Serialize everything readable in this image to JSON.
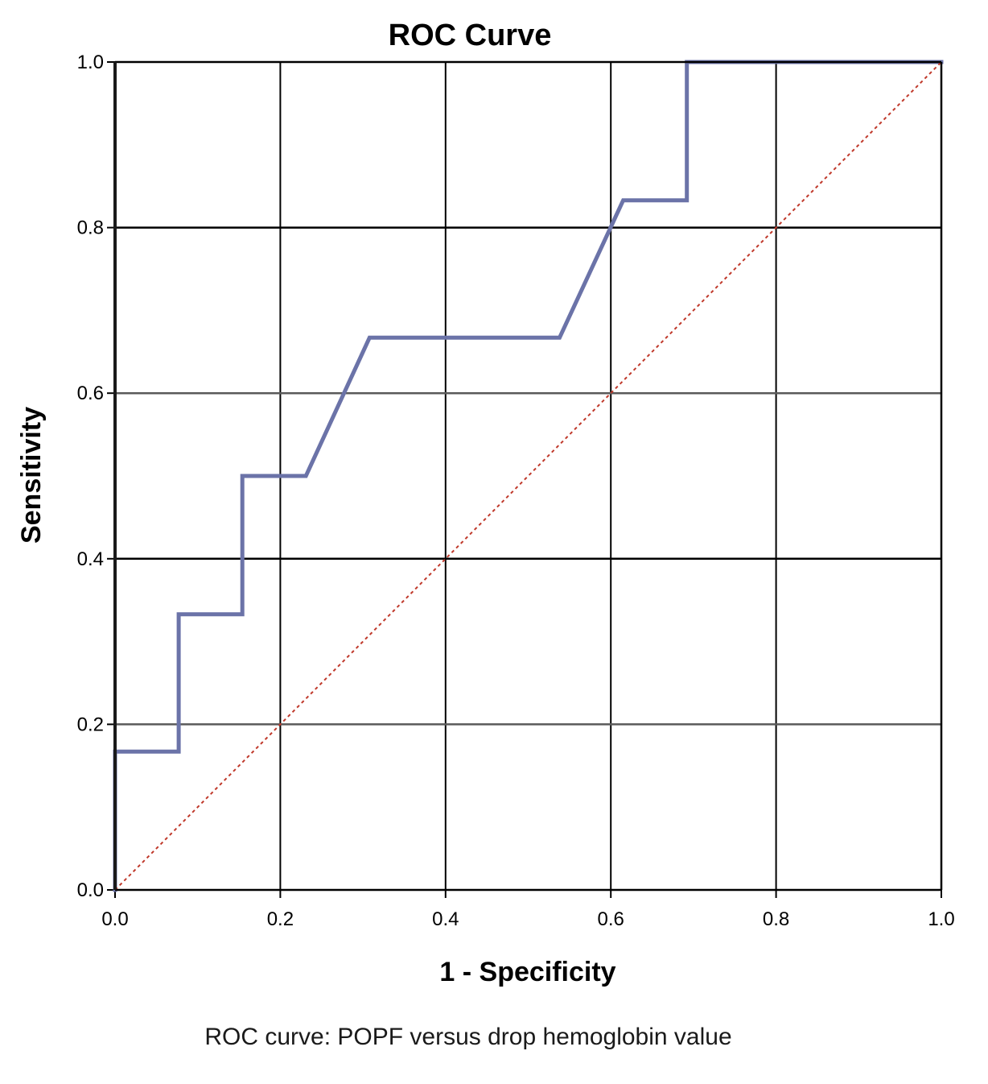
{
  "chart_data": {
    "type": "line",
    "title": "ROC Curve",
    "xlabel": "1 - Specificity",
    "ylabel": "Sensitivity",
    "xlim": [
      0.0,
      1.0
    ],
    "ylim": [
      0.0,
      1.0
    ],
    "x_ticks": [
      "0.0",
      "0.2",
      "0.4",
      "0.6",
      "0.8",
      "1.0"
    ],
    "y_ticks": [
      "0.0",
      "0.2",
      "0.4",
      "0.6",
      "0.8",
      "1.0"
    ],
    "grid": true,
    "series": [
      {
        "role": "curve",
        "style": "solid",
        "color": "#6b73a8",
        "x": [
          0.0,
          0.0,
          0.077,
          0.077,
          0.154,
          0.154,
          0.231,
          0.308,
          0.538,
          0.615,
          0.692,
          0.692,
          1.0
        ],
        "y": [
          0.0,
          0.167,
          0.167,
          0.333,
          0.333,
          0.5,
          0.5,
          0.667,
          0.667,
          0.833,
          0.833,
          1.0,
          1.0
        ]
      },
      {
        "role": "reference",
        "style": "dotted",
        "color": "#c0392b",
        "x": [
          0.0,
          1.0
        ],
        "y": [
          0.0,
          1.0
        ]
      }
    ]
  },
  "caption": "ROC curve: POPF versus drop hemoglobin value"
}
